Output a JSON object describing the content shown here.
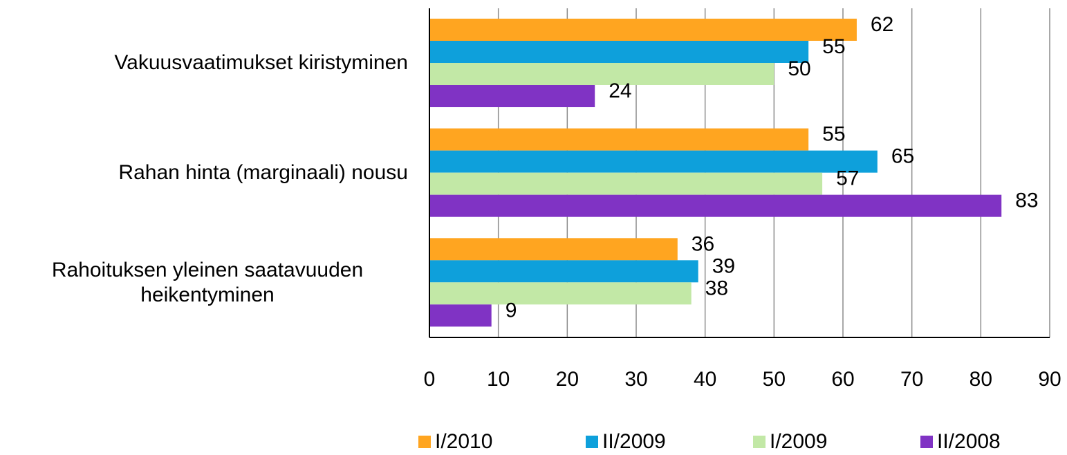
{
  "chart_data": {
    "type": "hbar",
    "categories": [
      "Vakuusvaatimukset kiristyminen",
      "Rahan hinta (marginaali) nousu",
      "Rahoituksen yleinen saatavuuden heikentyminen"
    ],
    "series": [
      {
        "name": "I/2010",
        "color": "#ffa520",
        "values": [
          62,
          55,
          36
        ]
      },
      {
        "name": "II/2009",
        "color": "#0ea0db",
        "values": [
          55,
          65,
          39
        ]
      },
      {
        "name": "I/2009",
        "color": "#c2e8a6",
        "values": [
          50,
          57,
          38
        ]
      },
      {
        "name": "II/2008",
        "color": "#8033c4",
        "values": [
          24,
          83,
          9
        ]
      }
    ],
    "xlim": [
      0,
      90
    ],
    "xticks": [
      0,
      10,
      20,
      30,
      40,
      50,
      60,
      70,
      80,
      90
    ],
    "grid": true,
    "legend": "bottom"
  }
}
